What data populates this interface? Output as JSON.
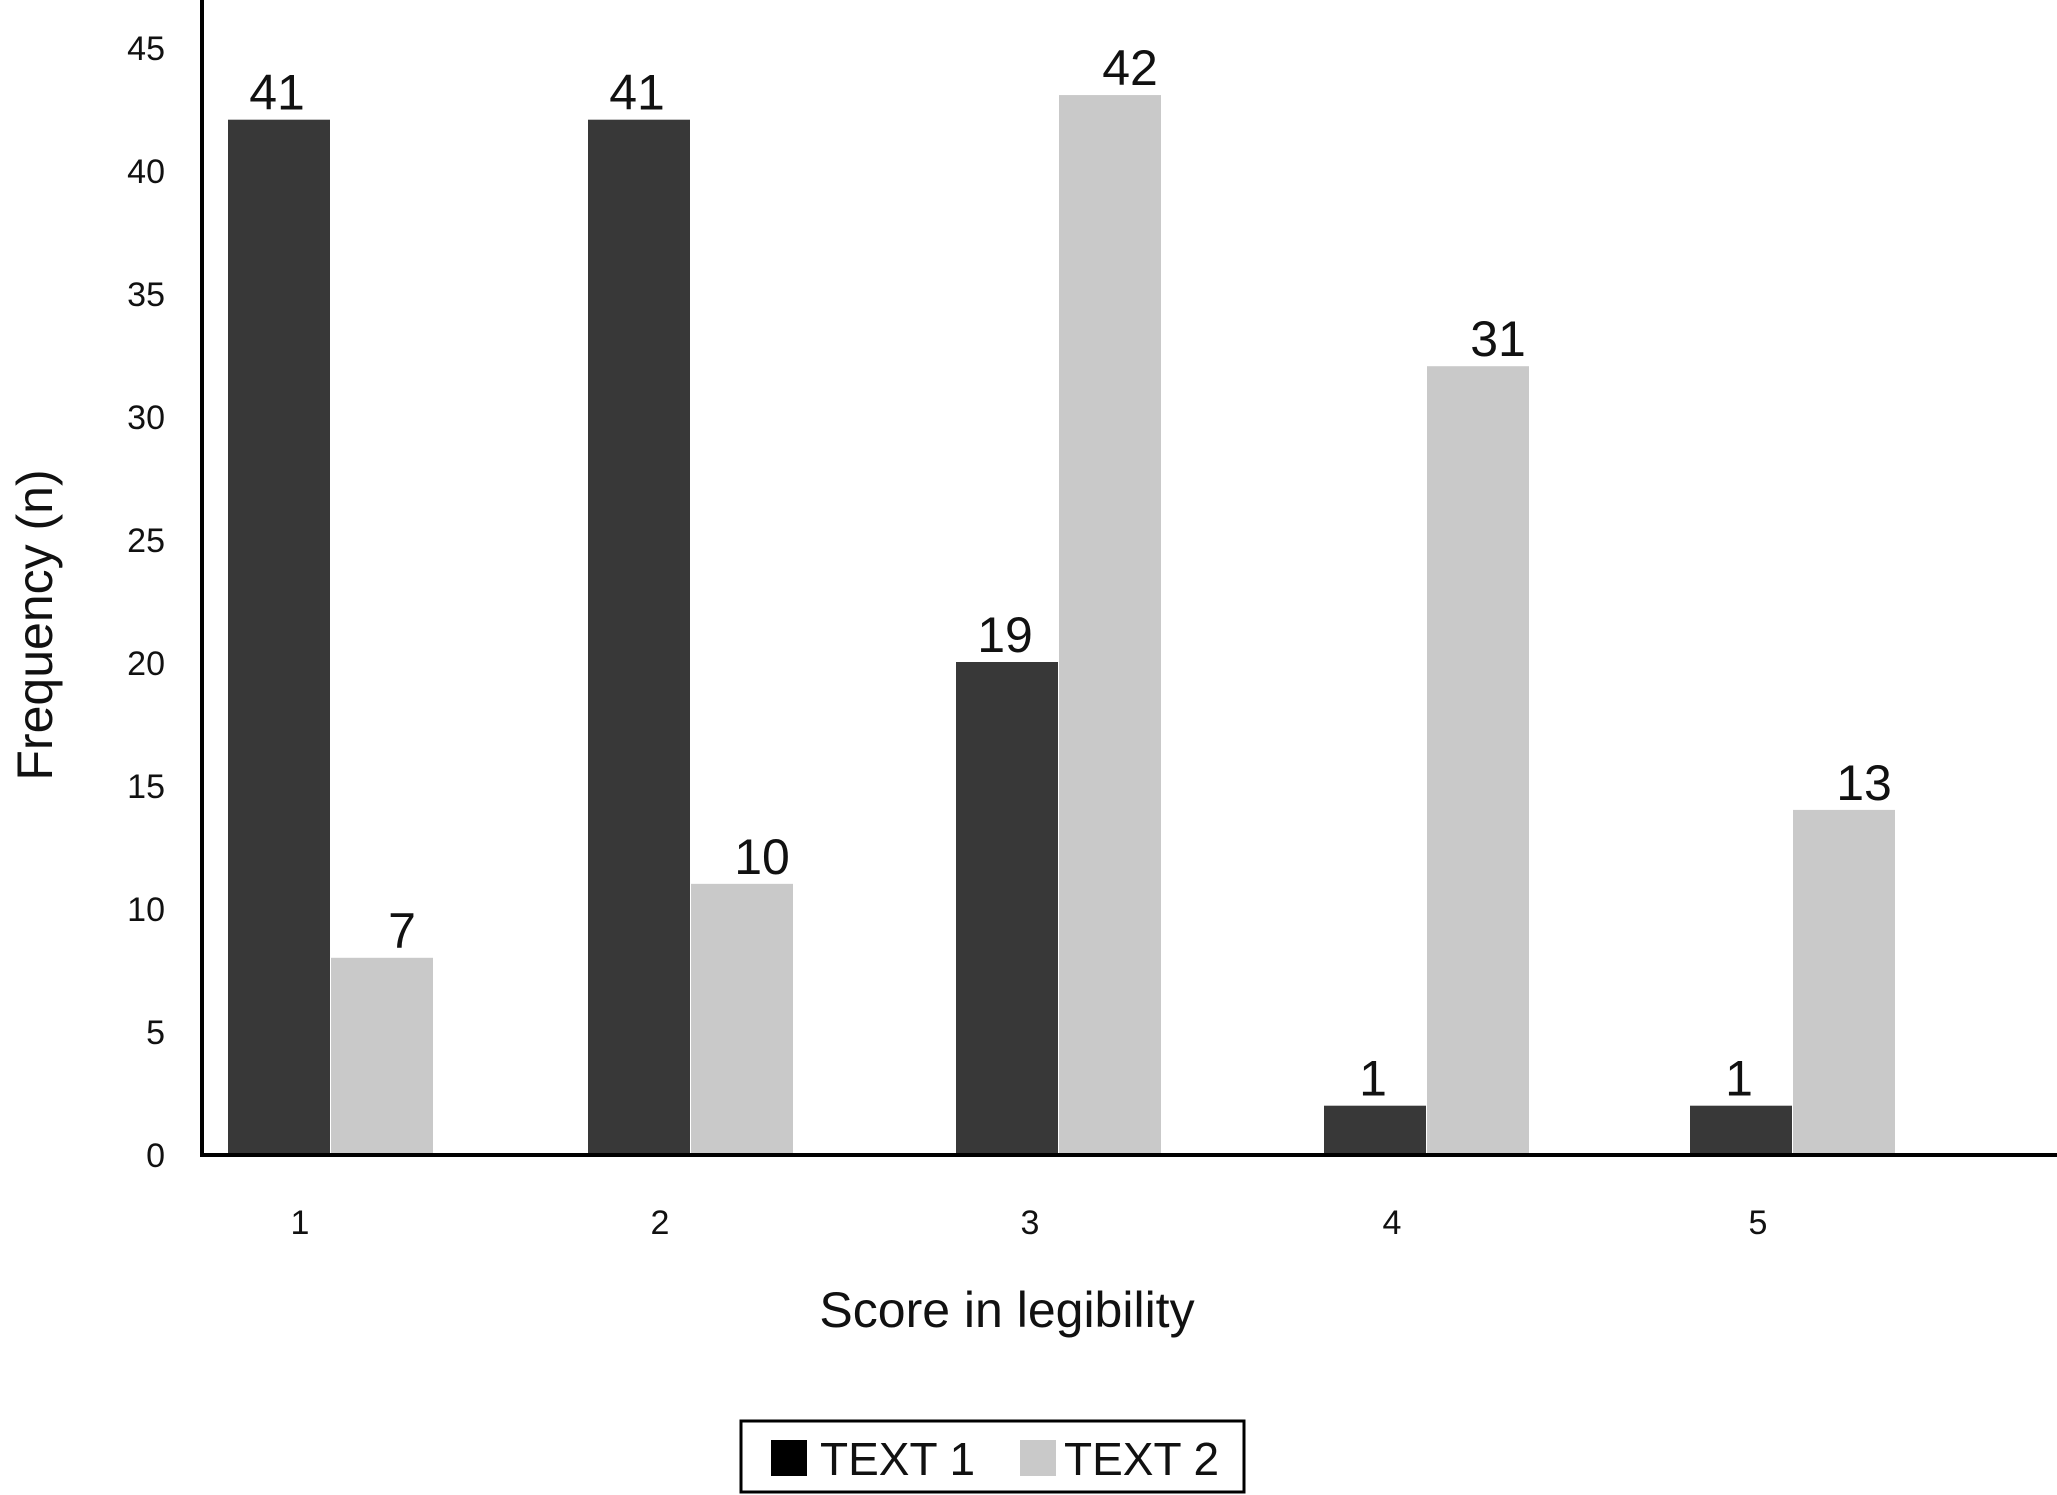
{
  "chart_data": {
    "type": "bar",
    "categories": [
      "1",
      "2",
      "3",
      "4",
      "5"
    ],
    "series": [
      {
        "name": "TEXT 1",
        "color": "#383838",
        "values": [
          41,
          41,
          19,
          1,
          1
        ]
      },
      {
        "name": "TEXT 2",
        "color": "#c9c9c9",
        "values": [
          7,
          10,
          42,
          31,
          13
        ]
      }
    ],
    "xlabel": "Score in legibility",
    "ylabel": "Frequency (n)",
    "ylim": [
      0,
      45
    ],
    "yticks": [
      "0",
      "5",
      "10",
      "15",
      "20",
      "25",
      "30",
      "35",
      "40",
      "45"
    ],
    "grid": false,
    "legend_position": "bottom-center"
  }
}
